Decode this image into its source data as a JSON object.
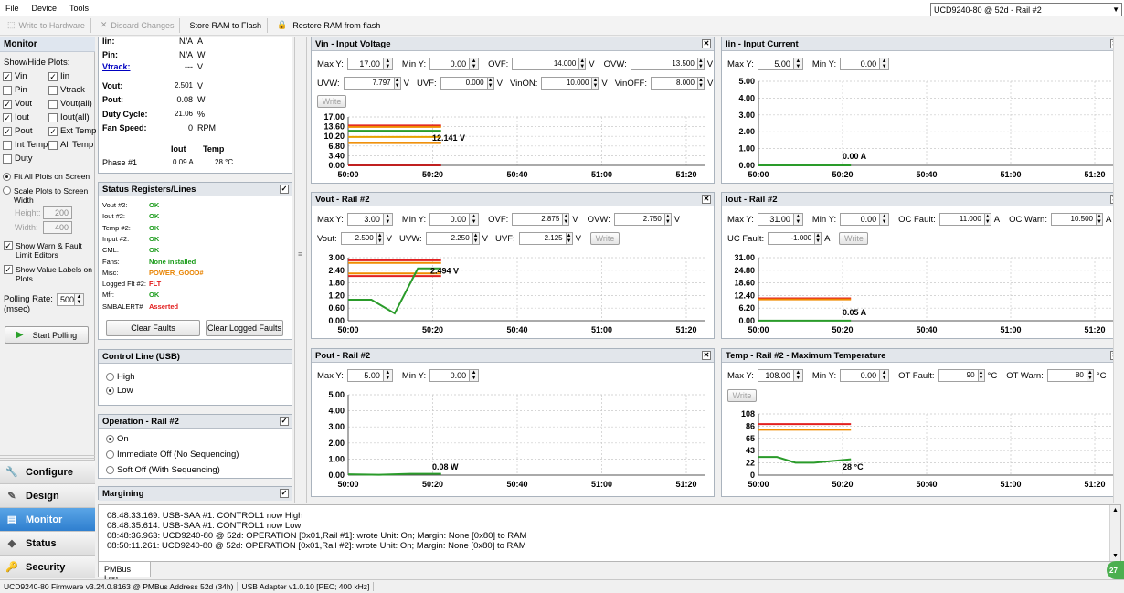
{
  "menu": [
    "File",
    "Device",
    "Tools"
  ],
  "toolbar": {
    "write_hw": "Write to Hardware",
    "discard": "Discard Changes",
    "store": "Store RAM to Flash",
    "restore": "Restore RAM from flash"
  },
  "device_select": "UCD9240-80 @ 52d - Rail #2",
  "left": {
    "title": "Monitor",
    "show_hide": "Show/Hide Plots:",
    "plots": [
      {
        "label": "Vin",
        "checked": true
      },
      {
        "label": "Iin",
        "checked": true
      },
      {
        "label": "Pin",
        "checked": false
      },
      {
        "label": "Vtrack",
        "checked": false
      },
      {
        "label": "Vout",
        "checked": true
      },
      {
        "label": "Vout(all)",
        "checked": false
      },
      {
        "label": "Iout",
        "checked": true
      },
      {
        "label": "Iout(all)",
        "checked": false
      },
      {
        "label": "Pout",
        "checked": true
      },
      {
        "label": "Ext Temp",
        "checked": true
      },
      {
        "label": "Int Temp",
        "checked": false
      },
      {
        "label": "All Temp",
        "checked": false
      },
      {
        "label": "Duty",
        "checked": false
      }
    ],
    "fit_all": "Fit All Plots on Screen",
    "scale": "Scale Plots to Screen Width",
    "height_label": "Height:",
    "height_val": "200",
    "width_label": "Width:",
    "width_val": "400",
    "show_warn": "Show Warn & Fault Limit Editors",
    "show_values": "Show Value Labels on Plots",
    "polling_label": "Polling Rate: (msec)",
    "polling_val": "500",
    "start_polling": "Start Polling"
  },
  "nav": [
    "Configure",
    "Design",
    "Monitor",
    "Status",
    "Security"
  ],
  "readings": {
    "rows": [
      {
        "name": "Iin:",
        "value": "N/A",
        "unit": "A"
      },
      {
        "name": "Pin:",
        "value": "N/A",
        "unit": "W"
      },
      {
        "name": "Vtrack:",
        "value": "---",
        "unit": "V"
      },
      {
        "name": "Vout:",
        "value": "2.501",
        "unit": "V"
      },
      {
        "name": "Pout:",
        "value": "0.08",
        "unit": "W"
      },
      {
        "name": "Duty Cycle:",
        "value": "21.06",
        "unit": "%"
      },
      {
        "name": "Fan Speed:",
        "value": "0",
        "unit": "RPM"
      }
    ],
    "iout_h": "Iout",
    "temp_h": "Temp",
    "phase": "Phase #1",
    "phase_iout": "0.09 A",
    "phase_temp": "28 °C"
  },
  "status": {
    "title": "Status Registers/Lines",
    "rows": [
      {
        "name": "Vout #2:",
        "value": "OK",
        "cls": "ok"
      },
      {
        "name": "Iout #2:",
        "value": "OK",
        "cls": "ok"
      },
      {
        "name": "Temp #2:",
        "value": "OK",
        "cls": "ok"
      },
      {
        "name": "Input #2:",
        "value": "OK",
        "cls": "ok"
      },
      {
        "name": "CML:",
        "value": "OK",
        "cls": "ok"
      },
      {
        "name": "Fans:",
        "value": "None installed",
        "cls": "ok"
      },
      {
        "name": "Misc:",
        "value": "POWER_GOOD#",
        "cls": "warn"
      },
      {
        "name": "Logged Flt #2:",
        "value": "FLT",
        "cls": "err"
      },
      {
        "name": "Mfr:",
        "value": "OK",
        "cls": "ok"
      },
      {
        "name": "SMBALERT#",
        "value": "Asserted",
        "cls": "err"
      }
    ],
    "clear_faults": "Clear Faults",
    "clear_logged": "Clear Logged Faults"
  },
  "control": {
    "title": "Control Line (USB)",
    "high": "High",
    "low": "Low"
  },
  "operation": {
    "title": "Operation - Rail #2",
    "on": "On",
    "imm": "Immediate Off (No Sequencing)",
    "soft": "Soft Off (With Sequencing)"
  },
  "margining": "Margining",
  "charts": {
    "vin": {
      "title": "Vin - Input Voltage",
      "maxy": "17.00",
      "miny": "0.00",
      "f1l": "OVF:",
      "f1": "14.000",
      "f2l": "OVW:",
      "f2": "13.500",
      "f3l": "UVW:",
      "f3": "7.797",
      "f4l": "UVF:",
      "f4": "0.000",
      "f5l": "VinON:",
      "f5": "10.000",
      "f6l": "VinOFF:",
      "f6": "8.000",
      "unit": "V",
      "write": "Write",
      "value_label": "12.141 V"
    },
    "iin": {
      "title": "Iin - Input Current",
      "maxy": "5.00",
      "miny": "0.00",
      "value_label": "0.00 A"
    },
    "vout": {
      "title": "Vout - Rail #2",
      "maxy": "3.00",
      "miny": "0.00",
      "f1l": "OVF:",
      "f1": "2.875",
      "f2l": "OVW:",
      "f2": "2.750",
      "f3l": "Vout:",
      "f3": "2.500",
      "f4l": "UVW:",
      "f4": "2.250",
      "f5l": "UVF:",
      "f5": "2.125",
      "unit": "V",
      "write": "Write",
      "value_label": "2.494 V"
    },
    "iout": {
      "title": "Iout - Rail #2",
      "maxy": "31.00",
      "miny": "0.00",
      "f1l": "OC Fault:",
      "f1": "11.000",
      "f2l": "OC Warn:",
      "f2": "10.500",
      "f3l": "UC Fault:",
      "f3": "-1.000",
      "unit": "A",
      "write": "Write",
      "value_label": "0.05 A"
    },
    "pout": {
      "title": "Pout - Rail #2",
      "maxy": "5.00",
      "miny": "0.00",
      "value_label": "0.08 W"
    },
    "temp": {
      "title": "Temp - Rail #2 - Maximum Temperature",
      "maxy": "108.00",
      "miny": "0.00",
      "f1l": "OT Fault:",
      "f1": "90",
      "f2l": "OT Warn:",
      "f2": "80",
      "unit": "°C",
      "write": "Write",
      "value_label": "28 °C"
    },
    "maxy_label": "Max Y:",
    "miny_label": "Min Y:"
  },
  "chart_data": [
    {
      "type": "line",
      "title": "Vin - Input Voltage",
      "x_ticks": [
        "50:00",
        "50:20",
        "50:40",
        "51:00",
        "51:20"
      ],
      "y_ticks": [
        "0.00",
        "3.40",
        "6.80",
        "10.20",
        "13.60",
        "17.00"
      ],
      "ylim": [
        0,
        17
      ],
      "series": [
        {
          "values": [
            12.14,
            12.14,
            12.14,
            12.14
          ],
          "color": "#2a9b2a"
        }
      ],
      "limits": [
        {
          "value": 14.0,
          "color": "#e22020"
        },
        {
          "value": 13.5,
          "color": "#f08c00"
        },
        {
          "value": 10.0,
          "color": "#e8a000"
        },
        {
          "value": 8.0,
          "color": "#f08c00"
        },
        {
          "value": 7.797,
          "color": "#f0a030"
        },
        {
          "value": 0.0,
          "color": "#c02020"
        }
      ]
    },
    {
      "type": "line",
      "title": "Iin - Input Current",
      "x_ticks": [
        "50:00",
        "50:20",
        "50:40",
        "51:00",
        "51:20"
      ],
      "y_ticks": [
        "0.00",
        "1.00",
        "2.00",
        "3.00",
        "4.00",
        "5.00"
      ],
      "ylim": [
        0,
        5
      ],
      "series": [
        {
          "values": [
            0,
            0,
            0,
            0
          ],
          "color": "#2a9b2a"
        }
      ]
    },
    {
      "type": "line",
      "title": "Vout - Rail #2",
      "x_ticks": [
        "50:00",
        "50:20",
        "50:40",
        "51:00",
        "51:20"
      ],
      "y_ticks": [
        "0.00",
        "0.60",
        "1.20",
        "1.80",
        "2.40",
        "3.00"
      ],
      "ylim": [
        0,
        3
      ],
      "series": [
        {
          "values": [
            1.0,
            1.0,
            0.35,
            2.49,
            2.49
          ],
          "color": "#2a9b2a"
        }
      ],
      "limits": [
        {
          "value": 2.875,
          "color": "#e22020"
        },
        {
          "value": 2.75,
          "color": "#f08c00"
        },
        {
          "value": 2.25,
          "color": "#f08c00"
        },
        {
          "value": 2.125,
          "color": "#e22020"
        }
      ]
    },
    {
      "type": "line",
      "title": "Iout - Rail #2",
      "x_ticks": [
        "50:00",
        "50:20",
        "50:40",
        "51:00",
        "51:20"
      ],
      "y_ticks": [
        "0.00",
        "6.20",
        "12.40",
        "18.60",
        "24.80",
        "31.00"
      ],
      "ylim": [
        0,
        31
      ],
      "series": [
        {
          "values": [
            0.05,
            0.05,
            0.05
          ],
          "color": "#2a9b2a"
        }
      ],
      "limits": [
        {
          "value": 11.0,
          "color": "#e22020"
        },
        {
          "value": 10.5,
          "color": "#f08c00"
        }
      ]
    },
    {
      "type": "line",
      "title": "Pout - Rail #2",
      "x_ticks": [
        "50:00",
        "50:20",
        "50:40",
        "51:00",
        "51:20"
      ],
      "y_ticks": [
        "0.00",
        "1.00",
        "2.00",
        "3.00",
        "4.00",
        "5.00"
      ],
      "ylim": [
        0,
        5
      ],
      "series": [
        {
          "values": [
            0.05,
            0.02,
            0.08,
            0.08
          ],
          "color": "#2a9b2a"
        }
      ]
    },
    {
      "type": "line",
      "title": "Temp - Rail #2 - Maximum Temperature",
      "x_ticks": [
        "50:00",
        "50:20",
        "50:40",
        "51:00",
        "51:20"
      ],
      "y_ticks": [
        "0",
        "22",
        "43",
        "65",
        "86",
        "108"
      ],
      "ylim": [
        0,
        108
      ],
      "series": [
        {
          "values": [
            32,
            32,
            22,
            22,
            25,
            28
          ],
          "color": "#2a9b2a"
        }
      ],
      "limits": [
        {
          "value": 90,
          "color": "#e22020"
        },
        {
          "value": 80,
          "color": "#f08c00"
        }
      ]
    }
  ],
  "log": [
    "08:48:33.169: USB-SAA #1: CONTROL1 now High",
    "08:48:35.614: USB-SAA #1: CONTROL1 now Low",
    "08:48:36.963: UCD9240-80 @ 52d: OPERATION [0x01,Rail #1]: wrote Unit: On; Margin: None [0x80] to RAM",
    "08:50:11.261: UCD9240-80 @ 52d: OPERATION [0x01,Rail #2]: wrote Unit: On; Margin: None [0x80] to RAM"
  ],
  "log_tab": "PMBus Log",
  "status_bar": [
    "UCD9240-80 Firmware v3.24.0.8163 @ PMBus Address 52d (34h)",
    "USB Adapter v1.0.10 [PEC; 400 kHz]"
  ],
  "badge": "27"
}
